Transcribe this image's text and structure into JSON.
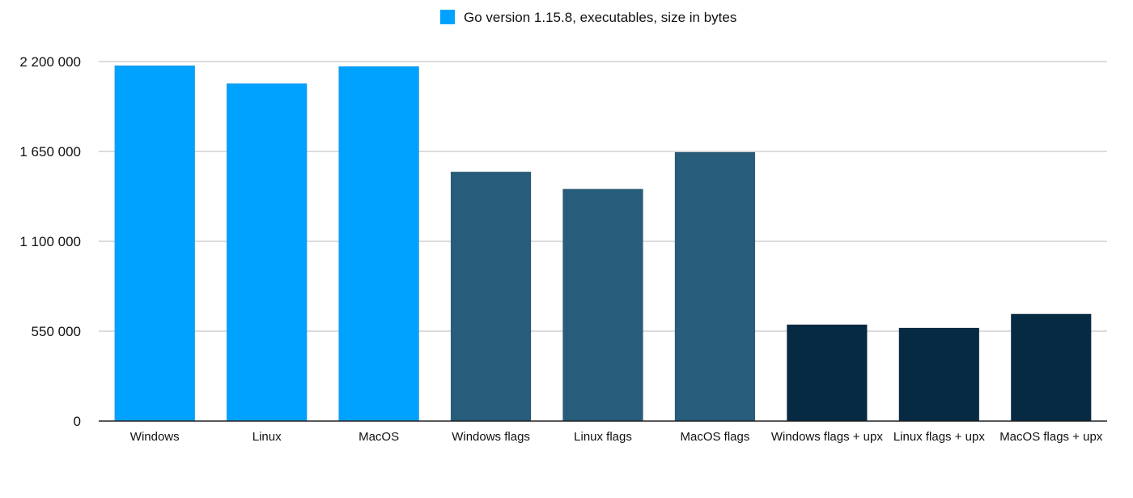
{
  "chart_data": {
    "type": "bar",
    "legend": {
      "label": "Go version 1.15.8, executables, size in bytes",
      "color": "#00a2ff",
      "position": "top-center"
    },
    "categories": [
      "Windows",
      "Linux",
      "MacOS",
      "Windows flags",
      "Linux flags",
      "MacOS flags",
      "Windows flags + upx",
      "Linux flags + upx",
      "MacOS flags + upx"
    ],
    "values": [
      2175000,
      2065000,
      2170000,
      1525000,
      1420000,
      1645000,
      590000,
      570000,
      655000
    ],
    "colors": [
      "#00a2ff",
      "#00a2ff",
      "#00a2ff",
      "#275c7b",
      "#275c7b",
      "#275c7b",
      "#072a44",
      "#072a44",
      "#072a44"
    ],
    "ylim": [
      0,
      2200000
    ],
    "yticks": [
      0,
      550000,
      1100000,
      1650000,
      2200000
    ],
    "ytick_labels": [
      "0",
      "550 000",
      "1 100 000",
      "1 650 000",
      "2 200 000"
    ],
    "grid": true
  }
}
